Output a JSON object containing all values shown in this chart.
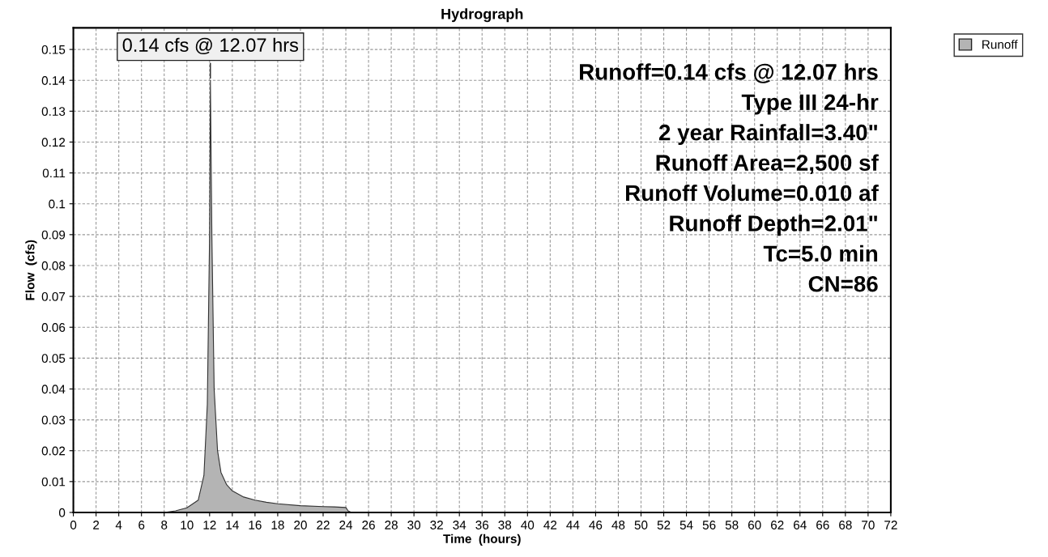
{
  "chart_data": {
    "type": "area",
    "title": "Hydrograph",
    "xlabel": "Time  (hours)",
    "ylabel": "Flow  (cfs)",
    "x": [
      0,
      8,
      9,
      10,
      11,
      11.5,
      11.8,
      12.0,
      12.07,
      12.2,
      12.4,
      12.7,
      13,
      13.5,
      14,
      15,
      16,
      17,
      18,
      20,
      22,
      23,
      24,
      24.2,
      24.5,
      72
    ],
    "series": [
      {
        "name": "Runoff",
        "color": "#b4b4b4",
        "values": [
          0,
          0,
          0.0005,
          0.0015,
          0.004,
          0.012,
          0.035,
          0.09,
          0.14,
          0.09,
          0.04,
          0.02,
          0.013,
          0.009,
          0.007,
          0.005,
          0.004,
          0.0033,
          0.0028,
          0.0022,
          0.0019,
          0.0018,
          0.0016,
          0.0005,
          0,
          0
        ]
      }
    ],
    "xlim": [
      0,
      72
    ],
    "ylim": [
      0,
      0.157
    ],
    "xticks": [
      0,
      2,
      4,
      6,
      8,
      10,
      12,
      14,
      16,
      18,
      20,
      22,
      24,
      26,
      28,
      30,
      32,
      34,
      36,
      38,
      40,
      42,
      44,
      46,
      48,
      50,
      52,
      54,
      56,
      58,
      60,
      62,
      64,
      66,
      68,
      70,
      72
    ],
    "yticks": [
      0,
      0.01,
      0.02,
      0.03,
      0.04,
      0.05,
      0.06,
      0.07,
      0.08,
      0.09,
      0.1,
      0.11,
      0.12,
      0.13,
      0.14,
      0.15
    ],
    "grid": true,
    "legend": "top right",
    "annotations": [
      {
        "text": "0.14 cfs @ 12.07 hrs",
        "x": 12.07,
        "y": 0.14
      },
      "Runoff=0.14 cfs @ 12.07 hrs",
      "Type III 24-hr",
      "2 year Rainfall=3.40\"",
      "Runoff Area=2,500 sf",
      "Runoff Volume=0.010 af",
      "Runoff Depth=2.01\"",
      "Tc=5.0 min",
      "CN=86"
    ]
  }
}
